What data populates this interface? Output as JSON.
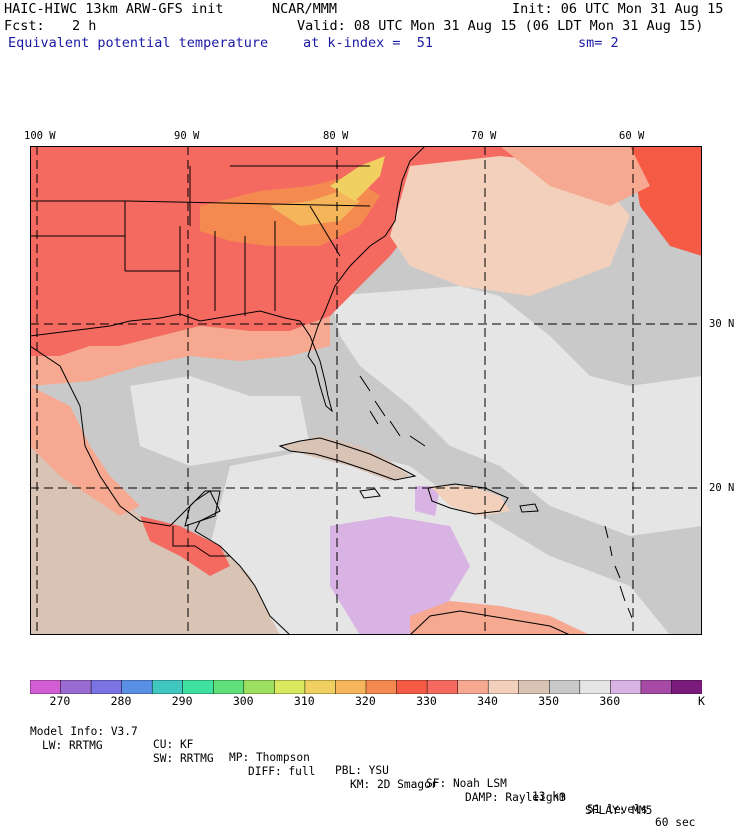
{
  "header": {
    "model": "HAIC-HIWC 13km ARW-GFS init",
    "org": "NCAR/MMM",
    "init": "Init: 06 UTC Mon 31 Aug 15",
    "fcst_label": "Fcst:",
    "fcst_value": "2 h",
    "valid": "Valid: 08 UTC Mon 31 Aug 15 (06 LDT Mon 31 Aug 15)",
    "field": "Equivalent potential temperature",
    "level": "at k-index =  51",
    "smoothing": "sm= 2"
  },
  "map": {
    "lon_labels": [
      "100 W",
      "90 W",
      "80 W",
      "70 W",
      "60 W"
    ],
    "lat_labels": [
      "30 N",
      "20 N"
    ]
  },
  "colorbar": {
    "colors": [
      "#d35dd3",
      "#9a6bd0",
      "#7a73e3",
      "#5a8fe6",
      "#3fc7c0",
      "#3fe0a0",
      "#5fe07a",
      "#9de05f",
      "#d8e85f",
      "#f0d060",
      "#f5b55a",
      "#f58a50",
      "#f55a45",
      "#f56a60",
      "#f6a890",
      "#f2d0bb",
      "#d8c3b5",
      "#c9c9c9",
      "#e5e5e5",
      "#d9b3e3",
      "#a64aa6",
      "#7a1a7a"
    ],
    "labels": [
      "270",
      "280",
      "290",
      "300",
      "310",
      "320",
      "330",
      "340",
      "350",
      "360",
      "K"
    ]
  },
  "footer": {
    "line1": [
      "Model Info: V3.7",
      "CU: KF",
      "MP: Thompson",
      "PBL: YSU",
      "SF: Noah LSM",
      "13 km",
      "51 levels",
      "60 sec"
    ],
    "line2": [
      "LW: RRTMG",
      "SW: RRTMG",
      "DIFF: full",
      "KM: 2D Smagor",
      "DAMP: Rayleigh3",
      "SFLAY: MM5"
    ]
  }
}
